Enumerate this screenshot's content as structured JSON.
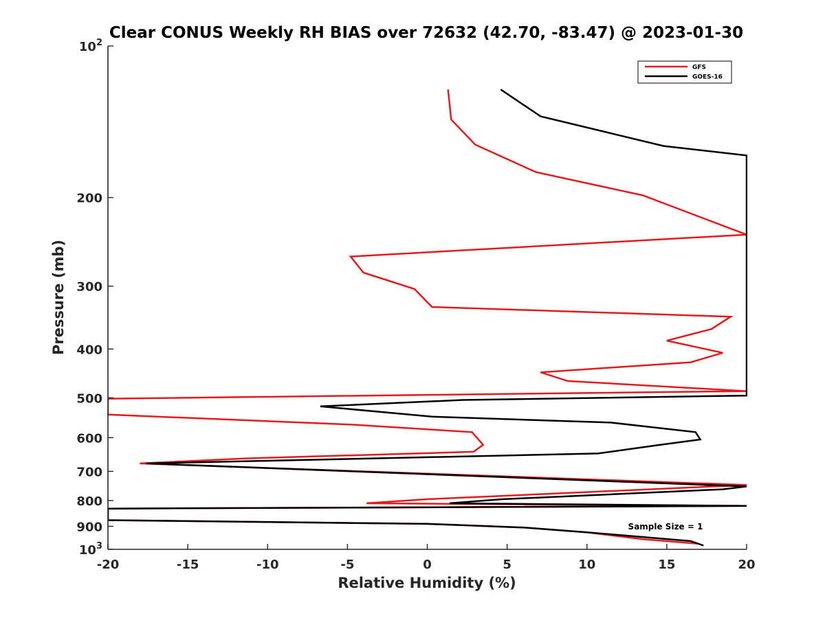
{
  "chart_data": {
    "type": "line",
    "title": "Clear CONUS Weekly RH BIAS over 72632 (42.70, -83.47) @ 2023-01-30",
    "xlabel": "Relative Humidity (%)",
    "ylabel": "Pressure (mb)",
    "xlim": [
      -20,
      20
    ],
    "ylim": [
      100,
      1000
    ],
    "y_scale": "log",
    "y_reversed": true,
    "grid": false,
    "legend_position": "top-right",
    "x_ticks": [
      "-20",
      "-15",
      "-10",
      "-5",
      "0",
      "5",
      "10",
      "15",
      "20"
    ],
    "y_ticks": [
      {
        "value": 100,
        "base": "10",
        "exp": "2"
      },
      {
        "value": 200,
        "label": "200"
      },
      {
        "value": 300,
        "label": "300"
      },
      {
        "value": 400,
        "label": "400"
      },
      {
        "value": 500,
        "label": "500"
      },
      {
        "value": 600,
        "label": "600"
      },
      {
        "value": 700,
        "label": "700"
      },
      {
        "value": 800,
        "label": "800"
      },
      {
        "value": 900,
        "label": "900"
      },
      {
        "value": 1000,
        "base": "10",
        "exp": "3"
      }
    ],
    "annotation": "Sample Size = 1",
    "series": [
      {
        "name": "GFS",
        "color": "#e41a1c",
        "points": [
          [
            17.0,
            975
          ],
          [
            13.5,
            955
          ],
          [
            10.0,
            925
          ],
          [
            6.0,
            905
          ],
          [
            0.0,
            890
          ],
          [
            -20,
            875
          ],
          [
            -20,
            830
          ],
          [
            20,
            820
          ],
          [
            -3.8,
            810
          ],
          [
            0.0,
            795
          ],
          [
            20,
            745
          ],
          [
            -18.0,
            675
          ],
          [
            -11.5,
            660
          ],
          [
            2.9,
            640
          ],
          [
            3.5,
            620
          ],
          [
            2.8,
            585
          ],
          [
            -4.8,
            565
          ],
          [
            -20,
            540
          ],
          [
            -20,
            502
          ],
          [
            20,
            485
          ],
          [
            8.8,
            463
          ],
          [
            7.1,
            445
          ],
          [
            16.5,
            425
          ],
          [
            18.5,
            407
          ],
          [
            15.0,
            385
          ],
          [
            17.8,
            365
          ],
          [
            19.0,
            345
          ],
          [
            0.3,
            330
          ],
          [
            -0.8,
            304
          ],
          [
            -4.0,
            282
          ],
          [
            -4.8,
            262
          ],
          [
            20,
            237
          ],
          [
            13.5,
            198
          ],
          [
            6.8,
            178
          ],
          [
            3.0,
            157
          ],
          [
            1.5,
            140
          ],
          [
            1.3,
            122
          ]
        ]
      },
      {
        "name": "GOES-16",
        "color": "#000000",
        "points": [
          [
            17.3,
            983
          ],
          [
            16.5,
            963
          ],
          [
            10.0,
            925
          ],
          [
            6.0,
            905
          ],
          [
            0.0,
            890
          ],
          [
            -20,
            875
          ],
          [
            -20,
            830
          ],
          [
            20,
            820
          ],
          [
            1.4,
            810
          ],
          [
            4.7,
            795
          ],
          [
            18.5,
            760
          ],
          [
            20,
            750
          ],
          [
            -17.6,
            675
          ],
          [
            10.7,
            645
          ],
          [
            14.6,
            620
          ],
          [
            17.1,
            605
          ],
          [
            16.8,
            585
          ],
          [
            11.5,
            560
          ],
          [
            0.3,
            545
          ],
          [
            -6.7,
            520
          ],
          [
            2.2,
            505
          ],
          [
            20,
            495
          ],
          [
            20,
            165
          ],
          [
            14.8,
            158
          ],
          [
            7.1,
            138
          ],
          [
            4.6,
            122
          ]
        ]
      }
    ]
  }
}
